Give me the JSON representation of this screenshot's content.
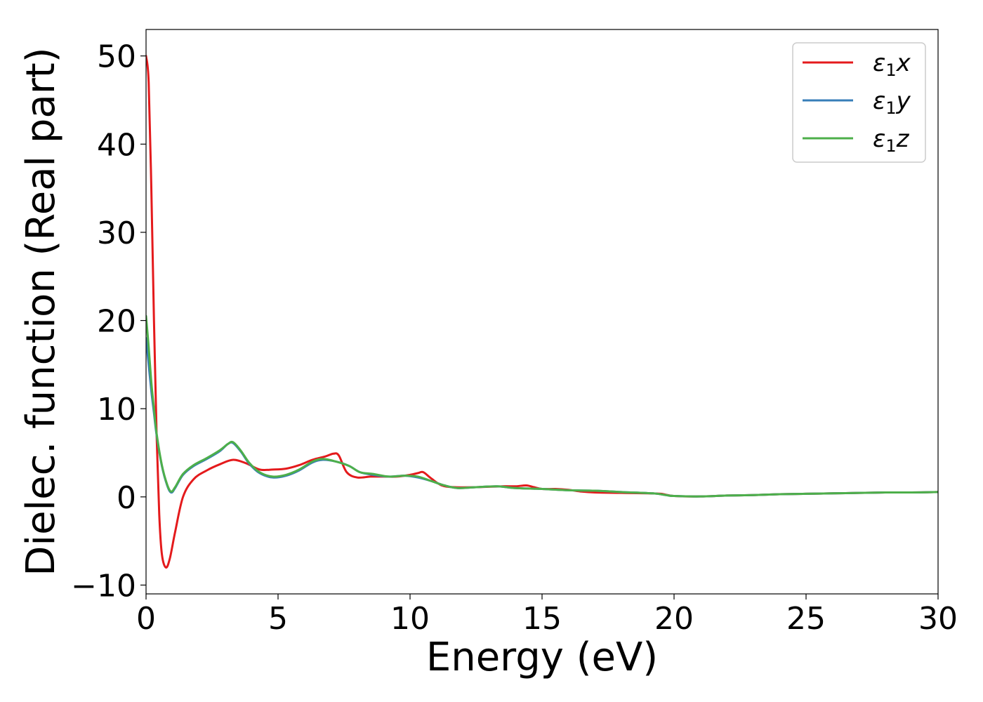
{
  "chart_data": {
    "type": "line",
    "title": "",
    "xlabel": "Energy (eV)",
    "ylabel": "Dielec. function (Real part)",
    "xlim": [
      0,
      30
    ],
    "ylim": [
      -11,
      53
    ],
    "xticks": [
      0,
      5,
      10,
      15,
      20,
      25,
      30
    ],
    "xtick_labels": [
      "0",
      "5",
      "10",
      "15",
      "20",
      "25",
      "30"
    ],
    "yticks": [
      -10,
      0,
      10,
      20,
      30,
      40,
      50
    ],
    "ytick_labels": [
      "−10",
      "0",
      "10",
      "20",
      "30",
      "40",
      "50"
    ],
    "grid": false,
    "legend_position": "top-right",
    "series": [
      {
        "name": "ε₁x",
        "name_main": "ε",
        "name_sub": "1",
        "name_tail": "x",
        "color": "#e41a1c",
        "x": [
          0.0,
          0.1,
          0.2,
          0.3,
          0.4,
          0.5,
          0.6,
          0.75,
          0.9,
          1.1,
          1.4,
          1.8,
          2.3,
          2.8,
          3.3,
          3.8,
          4.3,
          4.8,
          5.3,
          5.8,
          6.3,
          6.8,
          7.1,
          7.3,
          7.6,
          8.0,
          8.5,
          9.0,
          9.5,
          10.0,
          10.3,
          10.5,
          10.8,
          11.2,
          11.7,
          12.5,
          13.5,
          14.0,
          14.4,
          14.7,
          15.0,
          15.5,
          16.0,
          16.5,
          17.0,
          18.0,
          19.0,
          19.5,
          20.0,
          21.0,
          22.0,
          23.0,
          24.0,
          25.0,
          26.0,
          27.0,
          28.0,
          29.0,
          30.0
        ],
        "y": [
          50,
          47,
          35,
          20,
          7,
          -2,
          -6.5,
          -8,
          -7,
          -4,
          0,
          2,
          3,
          3.7,
          4.2,
          3.8,
          3.1,
          3.1,
          3.2,
          3.6,
          4.2,
          4.6,
          4.9,
          4.7,
          2.8,
          2.2,
          2.3,
          2.3,
          2.3,
          2.5,
          2.7,
          2.8,
          2.1,
          1.3,
          1.1,
          1.1,
          1.2,
          1.2,
          1.3,
          1.1,
          0.9,
          0.9,
          0.8,
          0.6,
          0.5,
          0.45,
          0.4,
          0.35,
          0.1,
          0.05,
          0.15,
          0.2,
          0.3,
          0.35,
          0.4,
          0.45,
          0.5,
          0.5,
          0.55
        ]
      },
      {
        "name": "ε₁y",
        "name_main": "ε",
        "name_sub": "1",
        "name_tail": "y",
        "color": "#377eb8",
        "x": [
          0.0,
          0.1,
          0.2,
          0.3,
          0.4,
          0.6,
          0.8,
          0.95,
          1.1,
          1.4,
          1.8,
          2.3,
          2.8,
          3.1,
          3.3,
          3.6,
          3.9,
          4.3,
          4.8,
          5.3,
          5.8,
          6.3,
          6.7,
          7.2,
          7.7,
          8.1,
          8.6,
          9.2,
          9.8,
          10.3,
          10.8,
          11.3,
          11.8,
          12.5,
          13.3,
          14.0,
          15.0,
          16.0,
          17.0,
          18.0,
          19.2,
          19.7,
          20.0,
          21.0,
          22.0,
          23.0,
          24.0,
          25.0,
          26.0,
          27.0,
          28.0,
          29.0,
          30.0
        ],
        "y": [
          18,
          15,
          12,
          9.5,
          7,
          3.5,
          1.3,
          0.5,
          1,
          2.5,
          3.5,
          4.3,
          5.2,
          6,
          6.1,
          5.1,
          3.8,
          2.7,
          2.2,
          2.4,
          3,
          3.9,
          4.2,
          4,
          3.5,
          2.8,
          2.5,
          2.3,
          2.4,
          2.2,
          1.8,
          1.3,
          1.0,
          1.1,
          1.2,
          1.0,
          0.9,
          0.75,
          0.7,
          0.55,
          0.4,
          0.2,
          0.1,
          0.05,
          0.15,
          0.2,
          0.3,
          0.35,
          0.4,
          0.45,
          0.5,
          0.5,
          0.55
        ]
      },
      {
        "name": "ε₁z",
        "name_main": "ε",
        "name_sub": "1",
        "name_tail": "z",
        "color": "#4daf4a",
        "x": [
          0.0,
          0.1,
          0.2,
          0.3,
          0.4,
          0.6,
          0.8,
          0.95,
          1.1,
          1.4,
          1.8,
          2.3,
          2.8,
          3.1,
          3.3,
          3.6,
          3.9,
          4.3,
          4.8,
          5.3,
          5.8,
          6.3,
          6.7,
          7.2,
          7.7,
          8.1,
          8.6,
          9.2,
          9.8,
          10.3,
          10.8,
          11.3,
          11.8,
          12.5,
          13.3,
          14.0,
          15.0,
          16.0,
          17.0,
          18.0,
          19.2,
          19.7,
          20.0,
          21.0,
          22.0,
          23.0,
          24.0,
          25.0,
          26.0,
          27.0,
          28.0,
          29.0,
          30.0
        ],
        "y": [
          20.5,
          17,
          13,
          10,
          7.2,
          3.6,
          1.4,
          0.6,
          1.1,
          2.6,
          3.6,
          4.4,
          5.3,
          6.0,
          6.2,
          5.2,
          3.9,
          2.8,
          2.3,
          2.5,
          3.1,
          4.0,
          4.3,
          4.0,
          3.5,
          2.8,
          2.6,
          2.3,
          2.4,
          2.3,
          1.8,
          1.3,
          1.0,
          1.1,
          1.2,
          1.0,
          0.9,
          0.75,
          0.7,
          0.55,
          0.4,
          0.2,
          0.1,
          0.05,
          0.15,
          0.2,
          0.3,
          0.35,
          0.4,
          0.45,
          0.5,
          0.5,
          0.55
        ]
      }
    ]
  }
}
